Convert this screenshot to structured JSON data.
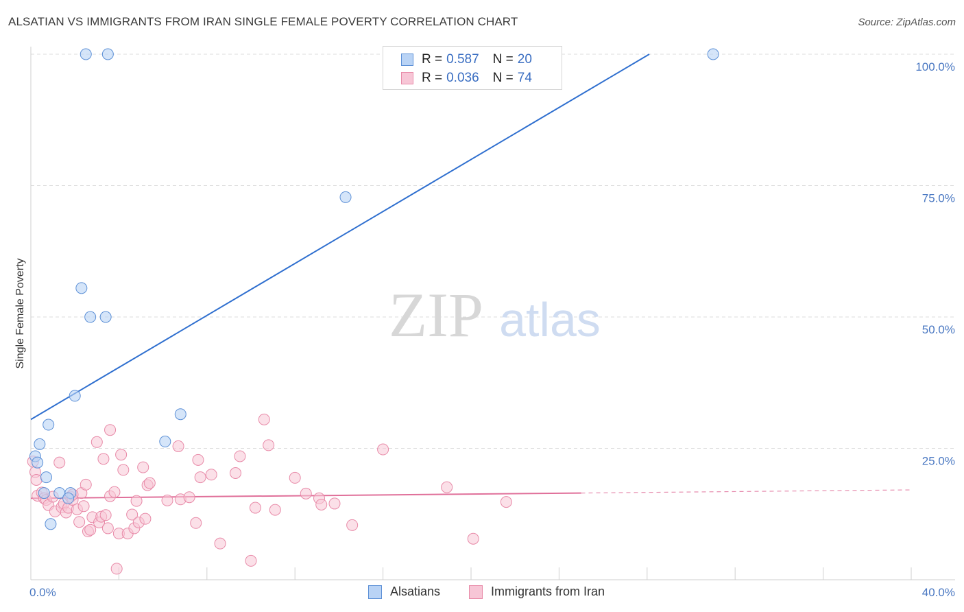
{
  "header": {
    "title": "ALSATIAN VS IMMIGRANTS FROM IRAN SINGLE FEMALE POVERTY CORRELATION CHART",
    "source": "Source: ZipAtlas.com"
  },
  "watermark": {
    "zip": "ZIP",
    "atlas": "atlas"
  },
  "colors": {
    "alsatians_fill": "#b9d3f5",
    "alsatians_stroke": "#5b8fd6",
    "alsatians_line": "#2f6fcf",
    "iran_fill": "#f7c6d6",
    "iran_stroke": "#e88aa8",
    "iran_line": "#e0709a",
    "tick_label": "#4a78c2",
    "grid": "#dddddd"
  },
  "legend": {
    "rows": [
      {
        "r_label": "R =",
        "r_value": "0.587",
        "n_label": "N =",
        "n_value": "20"
      },
      {
        "r_label": "R =",
        "r_value": "0.036",
        "n_label": "N =",
        "n_value": "74"
      }
    ]
  },
  "bottom_legend": [
    "Alsatians",
    "Immigrants from Iran"
  ],
  "chart_data": {
    "type": "scatter",
    "title": "ALSATIAN VS IMMIGRANTS FROM IRAN SINGLE FEMALE POVERTY CORRELATION CHART",
    "xlabel": "",
    "ylabel": "Single Female Poverty",
    "xlim": [
      0,
      40
    ],
    "ylim": [
      0,
      100
    ],
    "x_ticks": [
      "0.0%",
      "40.0%"
    ],
    "y_ticks": [
      {
        "value": 100,
        "label": "100.0%"
      },
      {
        "value": 75,
        "label": "75.0%"
      },
      {
        "value": 50,
        "label": "50.0%"
      },
      {
        "value": 25,
        "label": "25.0%"
      }
    ],
    "grid": true,
    "legend_position": "top-center",
    "series": [
      {
        "name": "Alsatians",
        "r": 0.587,
        "n": 20,
        "trend": {
          "x": [
            0,
            28.1
          ],
          "y": [
            30.5,
            100
          ]
        },
        "points": [
          {
            "x": 2.5,
            "y": 100
          },
          {
            "x": 3.5,
            "y": 100
          },
          {
            "x": 31,
            "y": 100
          },
          {
            "x": 14.3,
            "y": 72.8
          },
          {
            "x": 2.3,
            "y": 55.5
          },
          {
            "x": 2.7,
            "y": 50
          },
          {
            "x": 3.4,
            "y": 50
          },
          {
            "x": 2.0,
            "y": 35
          },
          {
            "x": 6.8,
            "y": 31.5
          },
          {
            "x": 0.8,
            "y": 29.5
          },
          {
            "x": 6.1,
            "y": 26.3
          },
          {
            "x": 0.4,
            "y": 25.8
          },
          {
            "x": 0.2,
            "y": 23.5
          },
          {
            "x": 0.3,
            "y": 22.3
          },
          {
            "x": 0.7,
            "y": 19.5
          },
          {
            "x": 0.6,
            "y": 16.5
          },
          {
            "x": 1.3,
            "y": 16.5
          },
          {
            "x": 1.8,
            "y": 16.5
          },
          {
            "x": 1.7,
            "y": 15.5
          },
          {
            "x": 0.9,
            "y": 10.6
          }
        ]
      },
      {
        "name": "Immigrants from Iran",
        "r": 0.036,
        "n": 74,
        "trend": {
          "x": [
            0,
            25
          ],
          "y": [
            15.5,
            16.5
          ]
        },
        "trend_extension": {
          "x": [
            25,
            40
          ],
          "y": [
            16.5,
            17.1
          ]
        },
        "points": [
          {
            "x": 0.1,
            "y": 22.5
          },
          {
            "x": 0.2,
            "y": 20.5
          },
          {
            "x": 0.25,
            "y": 19.0
          },
          {
            "x": 0.3,
            "y": 16.0
          },
          {
            "x": 0.5,
            "y": 16.6
          },
          {
            "x": 0.6,
            "y": 15.5
          },
          {
            "x": 0.7,
            "y": 15.2
          },
          {
            "x": 0.8,
            "y": 14.2
          },
          {
            "x": 1.0,
            "y": 15.8
          },
          {
            "x": 1.1,
            "y": 13.0
          },
          {
            "x": 1.3,
            "y": 22.3
          },
          {
            "x": 1.4,
            "y": 13.8
          },
          {
            "x": 1.5,
            "y": 14.5
          },
          {
            "x": 1.6,
            "y": 12.8
          },
          {
            "x": 1.7,
            "y": 13.7
          },
          {
            "x": 1.8,
            "y": 15.8
          },
          {
            "x": 1.9,
            "y": 15.2
          },
          {
            "x": 2.1,
            "y": 13.4
          },
          {
            "x": 2.2,
            "y": 11.0
          },
          {
            "x": 2.3,
            "y": 16.5
          },
          {
            "x": 2.5,
            "y": 18.1
          },
          {
            "x": 2.6,
            "y": 9.2
          },
          {
            "x": 2.7,
            "y": 9.5
          },
          {
            "x": 2.8,
            "y": 11.9
          },
          {
            "x": 3.0,
            "y": 26.2
          },
          {
            "x": 3.1,
            "y": 10.9
          },
          {
            "x": 3.2,
            "y": 12.0
          },
          {
            "x": 3.3,
            "y": 23.0
          },
          {
            "x": 3.4,
            "y": 12.3
          },
          {
            "x": 3.5,
            "y": 9.8
          },
          {
            "x": 3.6,
            "y": 28.5
          },
          {
            "x": 3.6,
            "y": 15.9
          },
          {
            "x": 3.8,
            "y": 16.7
          },
          {
            "x": 3.9,
            "y": 2.1
          },
          {
            "x": 4.0,
            "y": 8.8
          },
          {
            "x": 4.1,
            "y": 23.8
          },
          {
            "x": 4.2,
            "y": 20.9
          },
          {
            "x": 4.4,
            "y": 8.8
          },
          {
            "x": 4.6,
            "y": 12.4
          },
          {
            "x": 4.7,
            "y": 9.8
          },
          {
            "x": 4.8,
            "y": 15.0
          },
          {
            "x": 4.9,
            "y": 10.9
          },
          {
            "x": 5.1,
            "y": 21.4
          },
          {
            "x": 5.2,
            "y": 11.6
          },
          {
            "x": 5.3,
            "y": 18.0
          },
          {
            "x": 5.4,
            "y": 18.4
          },
          {
            "x": 6.2,
            "y": 15.1
          },
          {
            "x": 6.7,
            "y": 25.4
          },
          {
            "x": 6.8,
            "y": 15.3
          },
          {
            "x": 7.2,
            "y": 15.7
          },
          {
            "x": 7.5,
            "y": 10.8
          },
          {
            "x": 7.6,
            "y": 22.8
          },
          {
            "x": 7.7,
            "y": 19.5
          },
          {
            "x": 8.2,
            "y": 20.0
          },
          {
            "x": 8.6,
            "y": 6.9
          },
          {
            "x": 9.3,
            "y": 20.3
          },
          {
            "x": 9.5,
            "y": 23.5
          },
          {
            "x": 10.0,
            "y": 3.6
          },
          {
            "x": 10.2,
            "y": 13.7
          },
          {
            "x": 10.6,
            "y": 30.5
          },
          {
            "x": 10.8,
            "y": 25.6
          },
          {
            "x": 11.1,
            "y": 13.3
          },
          {
            "x": 12.0,
            "y": 19.4
          },
          {
            "x": 12.5,
            "y": 16.4
          },
          {
            "x": 13.1,
            "y": 15.5
          },
          {
            "x": 13.2,
            "y": 14.3
          },
          {
            "x": 13.8,
            "y": 14.5
          },
          {
            "x": 14.6,
            "y": 10.4
          },
          {
            "x": 16.0,
            "y": 24.8
          },
          {
            "x": 18.9,
            "y": 17.6
          },
          {
            "x": 20.1,
            "y": 7.8
          },
          {
            "x": 21.6,
            "y": 14.8
          },
          {
            "x": 1.9,
            "y": 16.2
          },
          {
            "x": 2.4,
            "y": 14.0
          }
        ]
      }
    ]
  }
}
